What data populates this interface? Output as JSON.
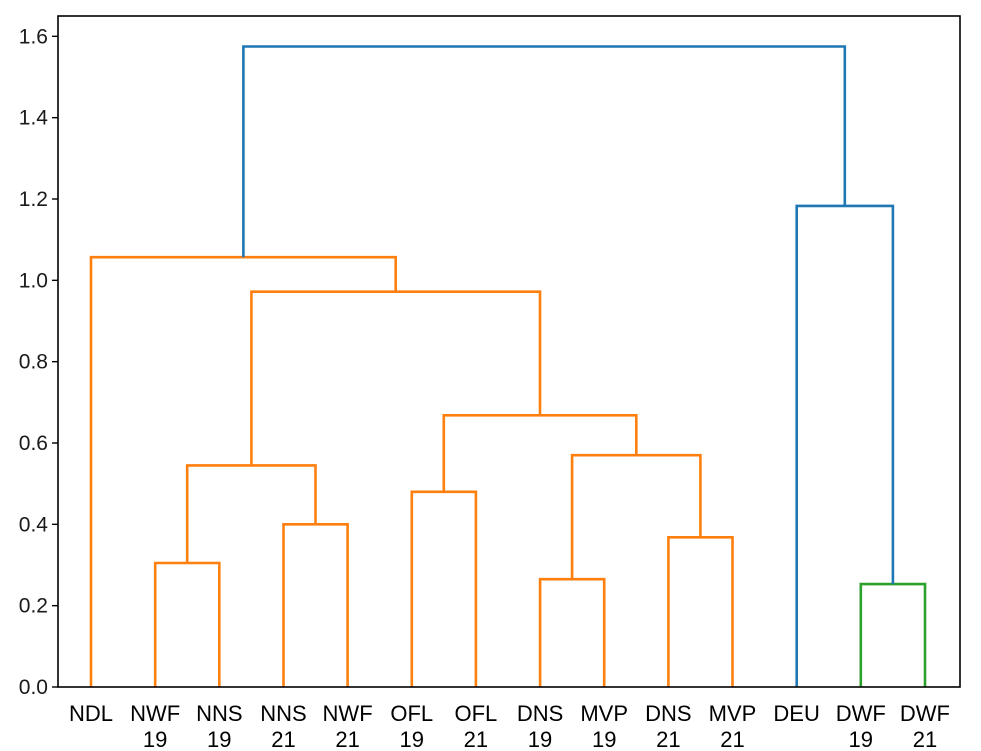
{
  "chart_data": {
    "type": "dendrogram",
    "title": "",
    "xlabel": "",
    "ylabel": "",
    "ylim": [
      0,
      1.65
    ],
    "yticks": [
      "0.0",
      "0.2",
      "0.4",
      "0.6",
      "0.8",
      "1.0",
      "1.2",
      "1.4",
      "1.6"
    ],
    "leaves": [
      {
        "line1": "NDL",
        "line2": ""
      },
      {
        "line1": "NWF",
        "line2": "19"
      },
      {
        "line1": "NNS",
        "line2": "19"
      },
      {
        "line1": "NNS",
        "line2": "21"
      },
      {
        "line1": "NWF",
        "line2": "21"
      },
      {
        "line1": "OFL",
        "line2": "19"
      },
      {
        "line1": "OFL",
        "line2": "21"
      },
      {
        "line1": "DNS",
        "line2": "19"
      },
      {
        "line1": "MVP",
        "line2": "19"
      },
      {
        "line1": "DNS",
        "line2": "21"
      },
      {
        "line1": "MVP",
        "line2": "21"
      },
      {
        "line1": "DEU",
        "line2": ""
      },
      {
        "line1": "DWF",
        "line2": "19"
      },
      {
        "line1": "DWF",
        "line2": "21"
      }
    ],
    "colors": {
      "orange": "#ff7f0e",
      "blue": "#1f77b4",
      "green": "#2ca02c"
    },
    "merges": [
      {
        "left": 1,
        "right": 2,
        "height": 0.305,
        "color": "orange"
      },
      {
        "left": 3,
        "right": 4,
        "height": 0.4,
        "color": "orange"
      },
      {
        "left": "m0",
        "right": "m1",
        "height": 0.545,
        "color": "orange"
      },
      {
        "left": 5,
        "right": 6,
        "height": 0.48,
        "color": "orange"
      },
      {
        "left": 7,
        "right": 8,
        "height": 0.265,
        "color": "orange"
      },
      {
        "left": 9,
        "right": 10,
        "height": 0.368,
        "color": "orange"
      },
      {
        "left": "m4",
        "right": "m5",
        "height": 0.57,
        "color": "orange"
      },
      {
        "left": "m3",
        "right": "m6",
        "height": 0.668,
        "color": "orange"
      },
      {
        "left": "m2",
        "right": "m7",
        "height": 0.972,
        "color": "orange"
      },
      {
        "left": 0,
        "right": "m8",
        "height": 1.057,
        "color": "orange"
      },
      {
        "left": 12,
        "right": 13,
        "height": 0.253,
        "color": "green"
      },
      {
        "left": 11,
        "right": "m10",
        "height": 1.183,
        "color": "blue"
      },
      {
        "left": "m9",
        "right": "m11",
        "height": 1.575,
        "color": "blue"
      }
    ]
  }
}
